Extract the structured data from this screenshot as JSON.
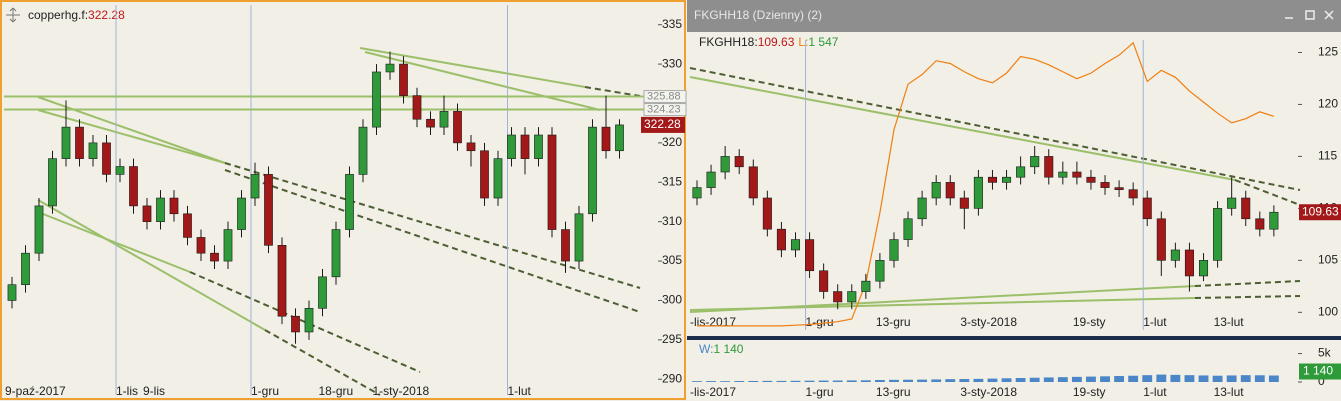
{
  "chart_data": [
    {
      "type": "candlestick",
      "symbol": "copperhg.f:",
      "last_value": 322.28,
      "categories": [
        "9-paź-2017",
        null,
        null,
        null,
        null,
        null,
        null,
        null,
        "1-lis",
        null,
        "9-lis",
        null,
        null,
        null,
        null,
        null,
        null,
        null,
        "1-gru",
        null,
        null,
        null,
        null,
        "18-gru",
        null,
        null,
        null,
        "1-sty-2018",
        null,
        null,
        null,
        null,
        null,
        null,
        null,
        null,
        null,
        "1-lut",
        null,
        null,
        null,
        null,
        null,
        null,
        null,
        null
      ],
      "open": [
        300,
        302,
        306,
        312,
        318,
        322,
        318,
        320,
        316,
        317,
        312,
        310,
        313,
        311,
        308,
        306,
        305,
        309,
        313,
        316,
        307,
        298,
        296,
        299,
        303,
        309,
        316,
        322,
        329,
        330,
        326,
        323,
        322,
        324,
        320,
        319,
        313,
        318,
        321,
        318,
        321,
        309,
        305,
        311,
        322,
        319
      ],
      "high": [
        303,
        307,
        313,
        319,
        325.4,
        323,
        321,
        321,
        318,
        318,
        313,
        314,
        314,
        312,
        309,
        307,
        310,
        314,
        317.5,
        317,
        308,
        299,
        300,
        304,
        310,
        317,
        323,
        330,
        331.6,
        331,
        327,
        324,
        326,
        325,
        321,
        320,
        319,
        322,
        322,
        322,
        322,
        310,
        312,
        323,
        326,
        323
      ],
      "low": [
        299,
        301,
        305,
        311,
        317,
        317,
        317,
        315,
        315,
        311,
        309,
        309,
        310,
        307,
        305,
        304,
        304,
        308,
        312,
        306,
        297,
        294.5,
        295,
        298,
        302,
        308,
        315,
        321,
        328,
        325,
        322,
        321,
        321,
        319,
        317,
        312,
        312,
        317,
        316,
        317,
        308,
        303.5,
        304,
        310,
        318,
        318
      ],
      "close": [
        302,
        306,
        312,
        318,
        322,
        318,
        320,
        316,
        317,
        312,
        310,
        313,
        311,
        308,
        306,
        305,
        309,
        313,
        316,
        307,
        298,
        296,
        299,
        303,
        309,
        316,
        322,
        329,
        330,
        326,
        323,
        322,
        324,
        320,
        319,
        313,
        318,
        321,
        318,
        321,
        309,
        305,
        311,
        322,
        319,
        322.28
      ],
      "up_color": "#2e9a3a",
      "down_color": "#a31818",
      "hlines": [
        325.88,
        324.23
      ],
      "hline_color": "#9cbf6a",
      "ylim": [
        288,
        337.5
      ],
      "yticks": [
        290,
        295,
        300,
        305,
        310,
        315,
        320,
        325,
        330,
        335
      ],
      "grid": false
    },
    {
      "type": "candlestick",
      "title": "FKGHH18 (Dzienny) (2)",
      "symbol": "FKGHH18:",
      "last_value": 109.63,
      "categories": [
        "-lis-2017",
        null,
        null,
        null,
        null,
        null,
        null,
        null,
        "1-gru",
        null,
        null,
        null,
        null,
        "13-gru",
        null,
        null,
        null,
        null,
        null,
        "3-sty-2018",
        null,
        null,
        null,
        null,
        null,
        null,
        null,
        "19-sty",
        null,
        null,
        null,
        null,
        "1-lut",
        null,
        null,
        null,
        null,
        "13-lut",
        null,
        null,
        null,
        null
      ],
      "open": [
        111,
        112,
        113.5,
        115,
        114,
        111,
        108,
        106,
        107,
        104,
        102,
        101,
        102,
        103,
        105,
        107,
        109,
        111,
        112.5,
        111,
        110,
        113,
        112.5,
        113,
        114,
        115,
        113,
        113.5,
        113,
        112.5,
        112,
        111.8,
        111,
        109,
        105,
        106,
        103.5,
        105,
        110,
        111,
        109,
        108
      ],
      "high": [
        112.7,
        114.2,
        116,
        115.7,
        114.7,
        111.7,
        108.7,
        107.7,
        107.7,
        104.7,
        102.7,
        102.7,
        103.7,
        105.7,
        107.7,
        109.7,
        111.7,
        113.2,
        113.2,
        111.7,
        113.7,
        113.7,
        113.7,
        115,
        116,
        115.7,
        114.5,
        114.5,
        113.7,
        113.2,
        112.7,
        112.5,
        111.7,
        109.7,
        106.7,
        106.7,
        105.7,
        110.7,
        113,
        111.7,
        109.7,
        110.3
      ],
      "low": [
        110.3,
        111.3,
        112.8,
        113.3,
        110.3,
        107.3,
        105.3,
        105.3,
        103.3,
        101.3,
        100.3,
        100.3,
        101.3,
        102.3,
        104.3,
        106.3,
        108.3,
        110.3,
        110.3,
        108,
        109.3,
        111.8,
        111.8,
        112.3,
        113.3,
        112.3,
        112.3,
        112.3,
        111.8,
        111.3,
        111.1,
        110.3,
        108.3,
        103.5,
        104.3,
        102,
        103,
        104.3,
        109.3,
        108.3,
        107.3,
        107.3
      ],
      "close": [
        112,
        113.5,
        115,
        114,
        111,
        108,
        106,
        107,
        104,
        102,
        101,
        102,
        103,
        105,
        107,
        109,
        111,
        112.5,
        111,
        110,
        113,
        112.5,
        113,
        114,
        115,
        113,
        113.5,
        113,
        112.5,
        112,
        111.8,
        111,
        109,
        105,
        106,
        103.5,
        105,
        110,
        111,
        109,
        108,
        109.63
      ],
      "up_color": "#2e9a3a",
      "down_color": "#a31818",
      "series": [
        {
          "name": "L:",
          "color": "#f07f10",
          "axis": "y2",
          "last_label": "1 547",
          "values": [
            30,
            30,
            30,
            30,
            30,
            30,
            30,
            35,
            40,
            50,
            60,
            80,
            340,
            850,
            1450,
            1780,
            1850,
            1950,
            1930,
            1870,
            1820,
            1790,
            1860,
            1980,
            1960,
            1920,
            1870,
            1820,
            1860,
            1930,
            1990,
            2080,
            1800,
            1880,
            1830,
            1730,
            1650,
            1570,
            1500,
            1530,
            1580,
            1547
          ]
        }
      ],
      "ylim": [
        98.3,
        126.2
      ],
      "yticks": [
        100,
        105,
        110,
        115,
        120,
        125
      ],
      "y2lim": [
        0,
        2100
      ],
      "grid": false
    },
    {
      "type": "bar",
      "name": "W:",
      "color": "#4a86c8",
      "last_label": "1 140",
      "values": [
        150,
        160,
        140,
        170,
        180,
        200,
        190,
        210,
        230,
        250,
        260,
        280,
        300,
        350,
        380,
        400,
        420,
        450,
        500,
        520,
        550,
        600,
        650,
        700,
        750,
        800,
        850,
        900,
        950,
        1000,
        1050,
        1100,
        1200,
        1300,
        1250,
        1200,
        1150,
        1100,
        1150,
        1200,
        1180,
        1140
      ],
      "ylim": [
        0,
        6500
      ],
      "yticks": [
        0,
        {
          "value": 5000,
          "label": "5k"
        }
      ],
      "grid": false
    }
  ]
}
